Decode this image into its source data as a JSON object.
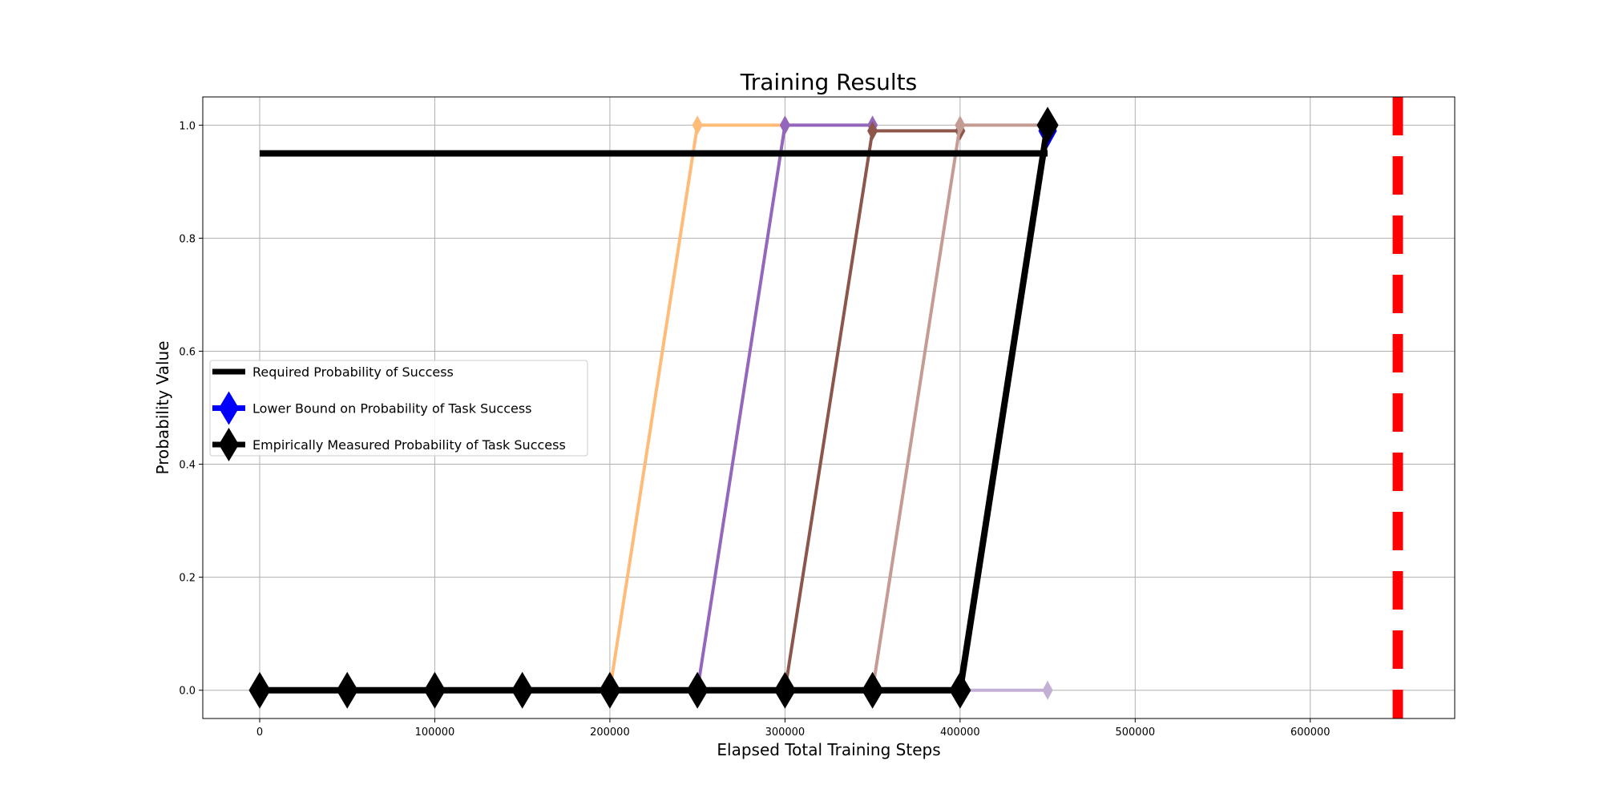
{
  "chart_data": {
    "type": "line",
    "title": "Training Results",
    "xlabel": "Elapsed Total Training Steps",
    "ylabel": "Probability Value",
    "xlim": [
      -32500,
      682500
    ],
    "ylim": [
      -0.05,
      1.05
    ],
    "x_ticks": [
      0,
      100000,
      200000,
      300000,
      400000,
      500000,
      600000
    ],
    "y_ticks": [
      0.0,
      0.2,
      0.4,
      0.6,
      0.8,
      1.0
    ],
    "x_tick_labels": [
      "0",
      "100000",
      "200000",
      "300000",
      "400000",
      "500000",
      "600000"
    ],
    "y_tick_labels": [
      "0.0",
      "0.2",
      "0.4",
      "0.6",
      "0.8",
      "1.0"
    ],
    "grid": true,
    "legend_position": "center-left",
    "legend": [
      {
        "label": "Required Probability of Success",
        "style": "line",
        "color": "#000000"
      },
      {
        "label": "Lower Bound on Probability of Task Success",
        "style": "line-diamond",
        "color": "#0000ff"
      },
      {
        "label": "Empirically Measured Probability of Task Success",
        "style": "line-diamond",
        "color": "#000000"
      }
    ],
    "required_probability": {
      "x": [
        0,
        450000
      ],
      "y": [
        0.95,
        0.95
      ],
      "color": "#000000"
    },
    "vertical_marker": {
      "x": 650000,
      "color": "#ff0000",
      "style": "dashed"
    },
    "series": [
      {
        "color": "#ffbb78",
        "x": [
          200000,
          250000,
          300000
        ],
        "y": [
          0.0,
          1.0,
          1.0
        ]
      },
      {
        "color": "#9467bd",
        "x": [
          250000,
          300000,
          350000
        ],
        "y": [
          0.0,
          1.0,
          1.0
        ]
      },
      {
        "color": "#8c564b",
        "x": [
          300000,
          350000,
          400000
        ],
        "y": [
          0.0,
          0.99,
          0.99
        ]
      },
      {
        "color": "#c49c94",
        "x": [
          350000,
          400000,
          450000
        ],
        "y": [
          0.0,
          1.0,
          1.0
        ]
      },
      {
        "color": "#c5b0d5",
        "x": [
          400000,
          450000
        ],
        "y": [
          0.0,
          0.0
        ]
      },
      {
        "color": "#0000ff",
        "x": [
          400000,
          450000
        ],
        "y": [
          0.0,
          0.99
        ]
      },
      {
        "color": "#000000",
        "x": [
          0,
          50000,
          100000,
          150000,
          200000,
          250000,
          300000,
          350000,
          400000,
          450000
        ],
        "y": [
          0,
          0,
          0,
          0,
          0,
          0,
          0,
          0,
          0,
          1.0
        ]
      }
    ]
  }
}
